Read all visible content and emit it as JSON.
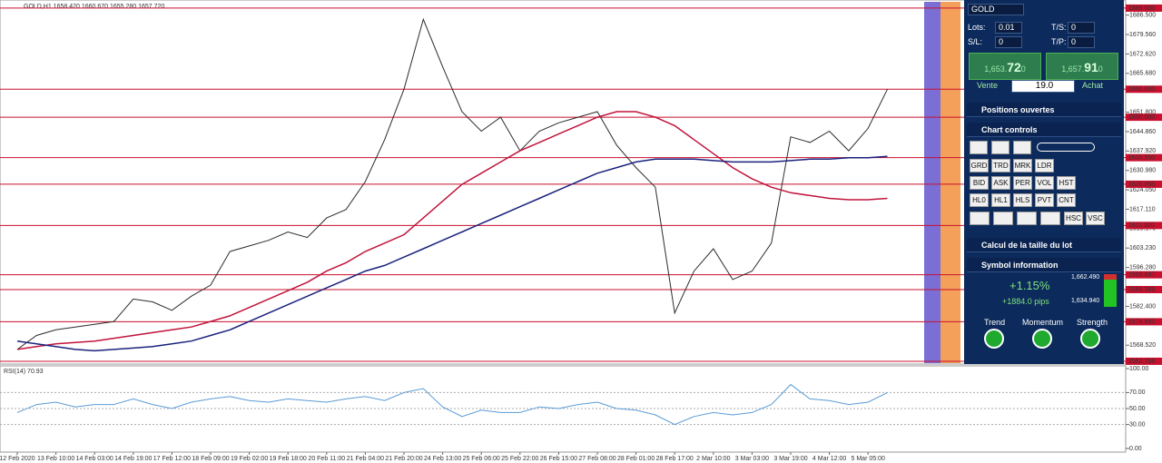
{
  "chart_data": [
    {
      "type": "line",
      "title": "GOLD,H1 1658.420 1660.670 1655.280 1657.720",
      "categories": [
        "12 Feb 2020",
        null,
        "13 Feb 10:00",
        null,
        "14 Feb 03:00",
        null,
        "14 Feb 19:00",
        null,
        "17 Feb 12:00",
        null,
        "18 Feb 09:00",
        null,
        "19 Feb 02:00",
        null,
        "19 Feb 18:00",
        null,
        "20 Feb 11:00",
        null,
        "21 Feb 04:00",
        null,
        "21 Feb 20:00",
        null,
        "24 Feb 13:00",
        null,
        "25 Feb 06:00",
        null,
        "25 Feb 22:00",
        null,
        "26 Feb 15:00",
        null,
        "27 Feb 08:00",
        null,
        "28 Feb 01:00",
        null,
        "28 Feb 17:00",
        null,
        "2 Mar 10:00",
        null,
        "3 Mar 03:00",
        null,
        "3 Mar 19:00",
        null,
        "4 Mar 12:00",
        null,
        "5 Mar 05:00",
        null
      ],
      "series": [
        {
          "color": "#2b2b2b",
          "values": [
            1567,
            1572,
            1574,
            1575,
            1576,
            1577,
            1585,
            1584,
            1581,
            1586,
            1590,
            1602,
            1604,
            1606,
            1609,
            1607,
            1614,
            1617,
            1627,
            1642,
            1660,
            1685,
            1668,
            1652,
            1645,
            1650,
            1638,
            1645,
            1648,
            1650,
            1652,
            1640,
            1632,
            1625,
            1580,
            1595,
            1603,
            1592,
            1595,
            1605,
            1643,
            1641,
            1645,
            1638,
            1646,
            1660
          ]
        },
        {
          "color": "#c0143c",
          "values": [
            1567,
            1568,
            1569,
            1569.5,
            1570,
            1571,
            1572,
            1573,
            1574,
            1575,
            1577,
            1579,
            1582,
            1585,
            1588,
            1591,
            1595,
            1598,
            1602,
            1605,
            1608,
            1614,
            1620,
            1626,
            1630,
            1634,
            1638,
            1641,
            1644,
            1647,
            1650,
            1652,
            1652,
            1650,
            1647,
            1642,
            1637,
            1632,
            1628,
            1625,
            1623,
            1622,
            1621,
            1620.5,
            1620.5,
            1621
          ]
        },
        {
          "color": "#1a237e",
          "values": [
            1570,
            1569,
            1568,
            1567,
            1566.5,
            1567,
            1567.5,
            1568,
            1569,
            1570,
            1572,
            1574,
            1577,
            1580,
            1583,
            1586,
            1589,
            1592,
            1595,
            1597,
            1600,
            1603,
            1606,
            1609,
            1612,
            1615,
            1618,
            1621,
            1624,
            1627,
            1630,
            1632,
            1634,
            1635,
            1635,
            1635,
            1634.5,
            1634,
            1634,
            1634,
            1634.5,
            1635,
            1635,
            1635.5,
            1635.5,
            1636
          ]
        }
      ],
      "ylim": [
        1562.1,
        1690.6
      ],
      "yticks": [
        {
          "value": 1686.5,
          "label": "1686.500"
        },
        {
          "value": 1679.56,
          "label": "1679.560"
        },
        {
          "value": 1672.62,
          "label": "1672.620"
        },
        {
          "value": 1665.68,
          "label": "1665.680"
        },
        {
          "value": 1651.8,
          "label": "1651.800"
        },
        {
          "value": 1644.86,
          "label": "1644.860"
        },
        {
          "value": 1637.92,
          "label": "1637.920"
        },
        {
          "value": 1630.98,
          "label": "1630.980"
        },
        {
          "value": 1624.05,
          "label": "1624.050"
        },
        {
          "value": 1617.11,
          "label": "1617.110"
        },
        {
          "value": 1610.17,
          "label": "1610.170"
        },
        {
          "value": 1603.23,
          "label": "1603.230"
        },
        {
          "value": 1596.28,
          "label": "1596.280"
        },
        {
          "value": 1582.4,
          "label": "1582.400"
        },
        {
          "value": 1568.52,
          "label": "1568.520"
        }
      ],
      "levels": [
        {
          "value": 1689,
          "label": "1689.000"
        },
        {
          "value": 1660,
          "label": "1660.000"
        },
        {
          "value": 1650,
          "label": "1650.000"
        },
        {
          "value": 1635.55,
          "label": "1635.550"
        },
        {
          "value": 1626.05,
          "label": "1626.050"
        },
        {
          "value": 1611.32,
          "label": "1611.320"
        },
        {
          "value": 1593.687,
          "label": "1593.687"
        },
        {
          "value": 1588.389,
          "label": "1588.389"
        },
        {
          "value": 1576.893,
          "label": "1576.893"
        },
        {
          "value": 1562.768,
          "label": "1562.768"
        }
      ],
      "level_color": "#c8102e"
    },
    {
      "type": "line",
      "title": "RSI(14) 70.93",
      "color": "#5b9bd5",
      "values": [
        45,
        55,
        58,
        52,
        55,
        55,
        62,
        55,
        50,
        58,
        62,
        65,
        60,
        58,
        62,
        60,
        58,
        62,
        65,
        60,
        70,
        75,
        52,
        40,
        48,
        45,
        45,
        52,
        50,
        55,
        58,
        50,
        48,
        42,
        30,
        40,
        45,
        42,
        45,
        55,
        80,
        62,
        60,
        55,
        58,
        70
      ],
      "ylim": [
        0,
        100
      ],
      "yticks": [
        {
          "value": 100,
          "label": "100.00"
        },
        {
          "value": 70,
          "label": "70.00"
        },
        {
          "value": 50,
          "label": "50.00"
        },
        {
          "value": 30,
          "label": "30.00"
        },
        {
          "value": 0,
          "label": "0.00"
        }
      ],
      "grid": true
    }
  ],
  "panel": {
    "symbol": "GOLD",
    "lots_label": "Lots:",
    "lots": "0.01",
    "ts_label": "T/S:",
    "ts": "0",
    "sl_label": "S/L:",
    "sl": "0",
    "tp_label": "T/P:",
    "tp": "0",
    "sell": {
      "prefix": "1,653.",
      "main": "72",
      "suffix": "0",
      "label": "Vente"
    },
    "spread": "19.0",
    "buy": {
      "prefix": "1,657.",
      "main": "91",
      "suffix": "0",
      "label": "Achat"
    },
    "sections": [
      "Positions ouvertes",
      "Chart controls",
      "Calcul de la taille du lot",
      "Symbol information"
    ],
    "buttons": [
      [
        "GRD",
        "TRD",
        "MRK",
        "LDR"
      ],
      [
        "BID",
        "ASK",
        "PER",
        "VOL",
        "HST"
      ],
      [
        "HL0",
        "HL1",
        "HLS",
        "PVT",
        "CNT"
      ],
      [
        "HSC",
        "VSC"
      ]
    ],
    "change": "+1.15%",
    "pips": "+1884.0 pips",
    "high": "1,662.490",
    "low": "1,634.940",
    "indicators": [
      "Trend",
      "Momentum",
      "Strength"
    ]
  }
}
